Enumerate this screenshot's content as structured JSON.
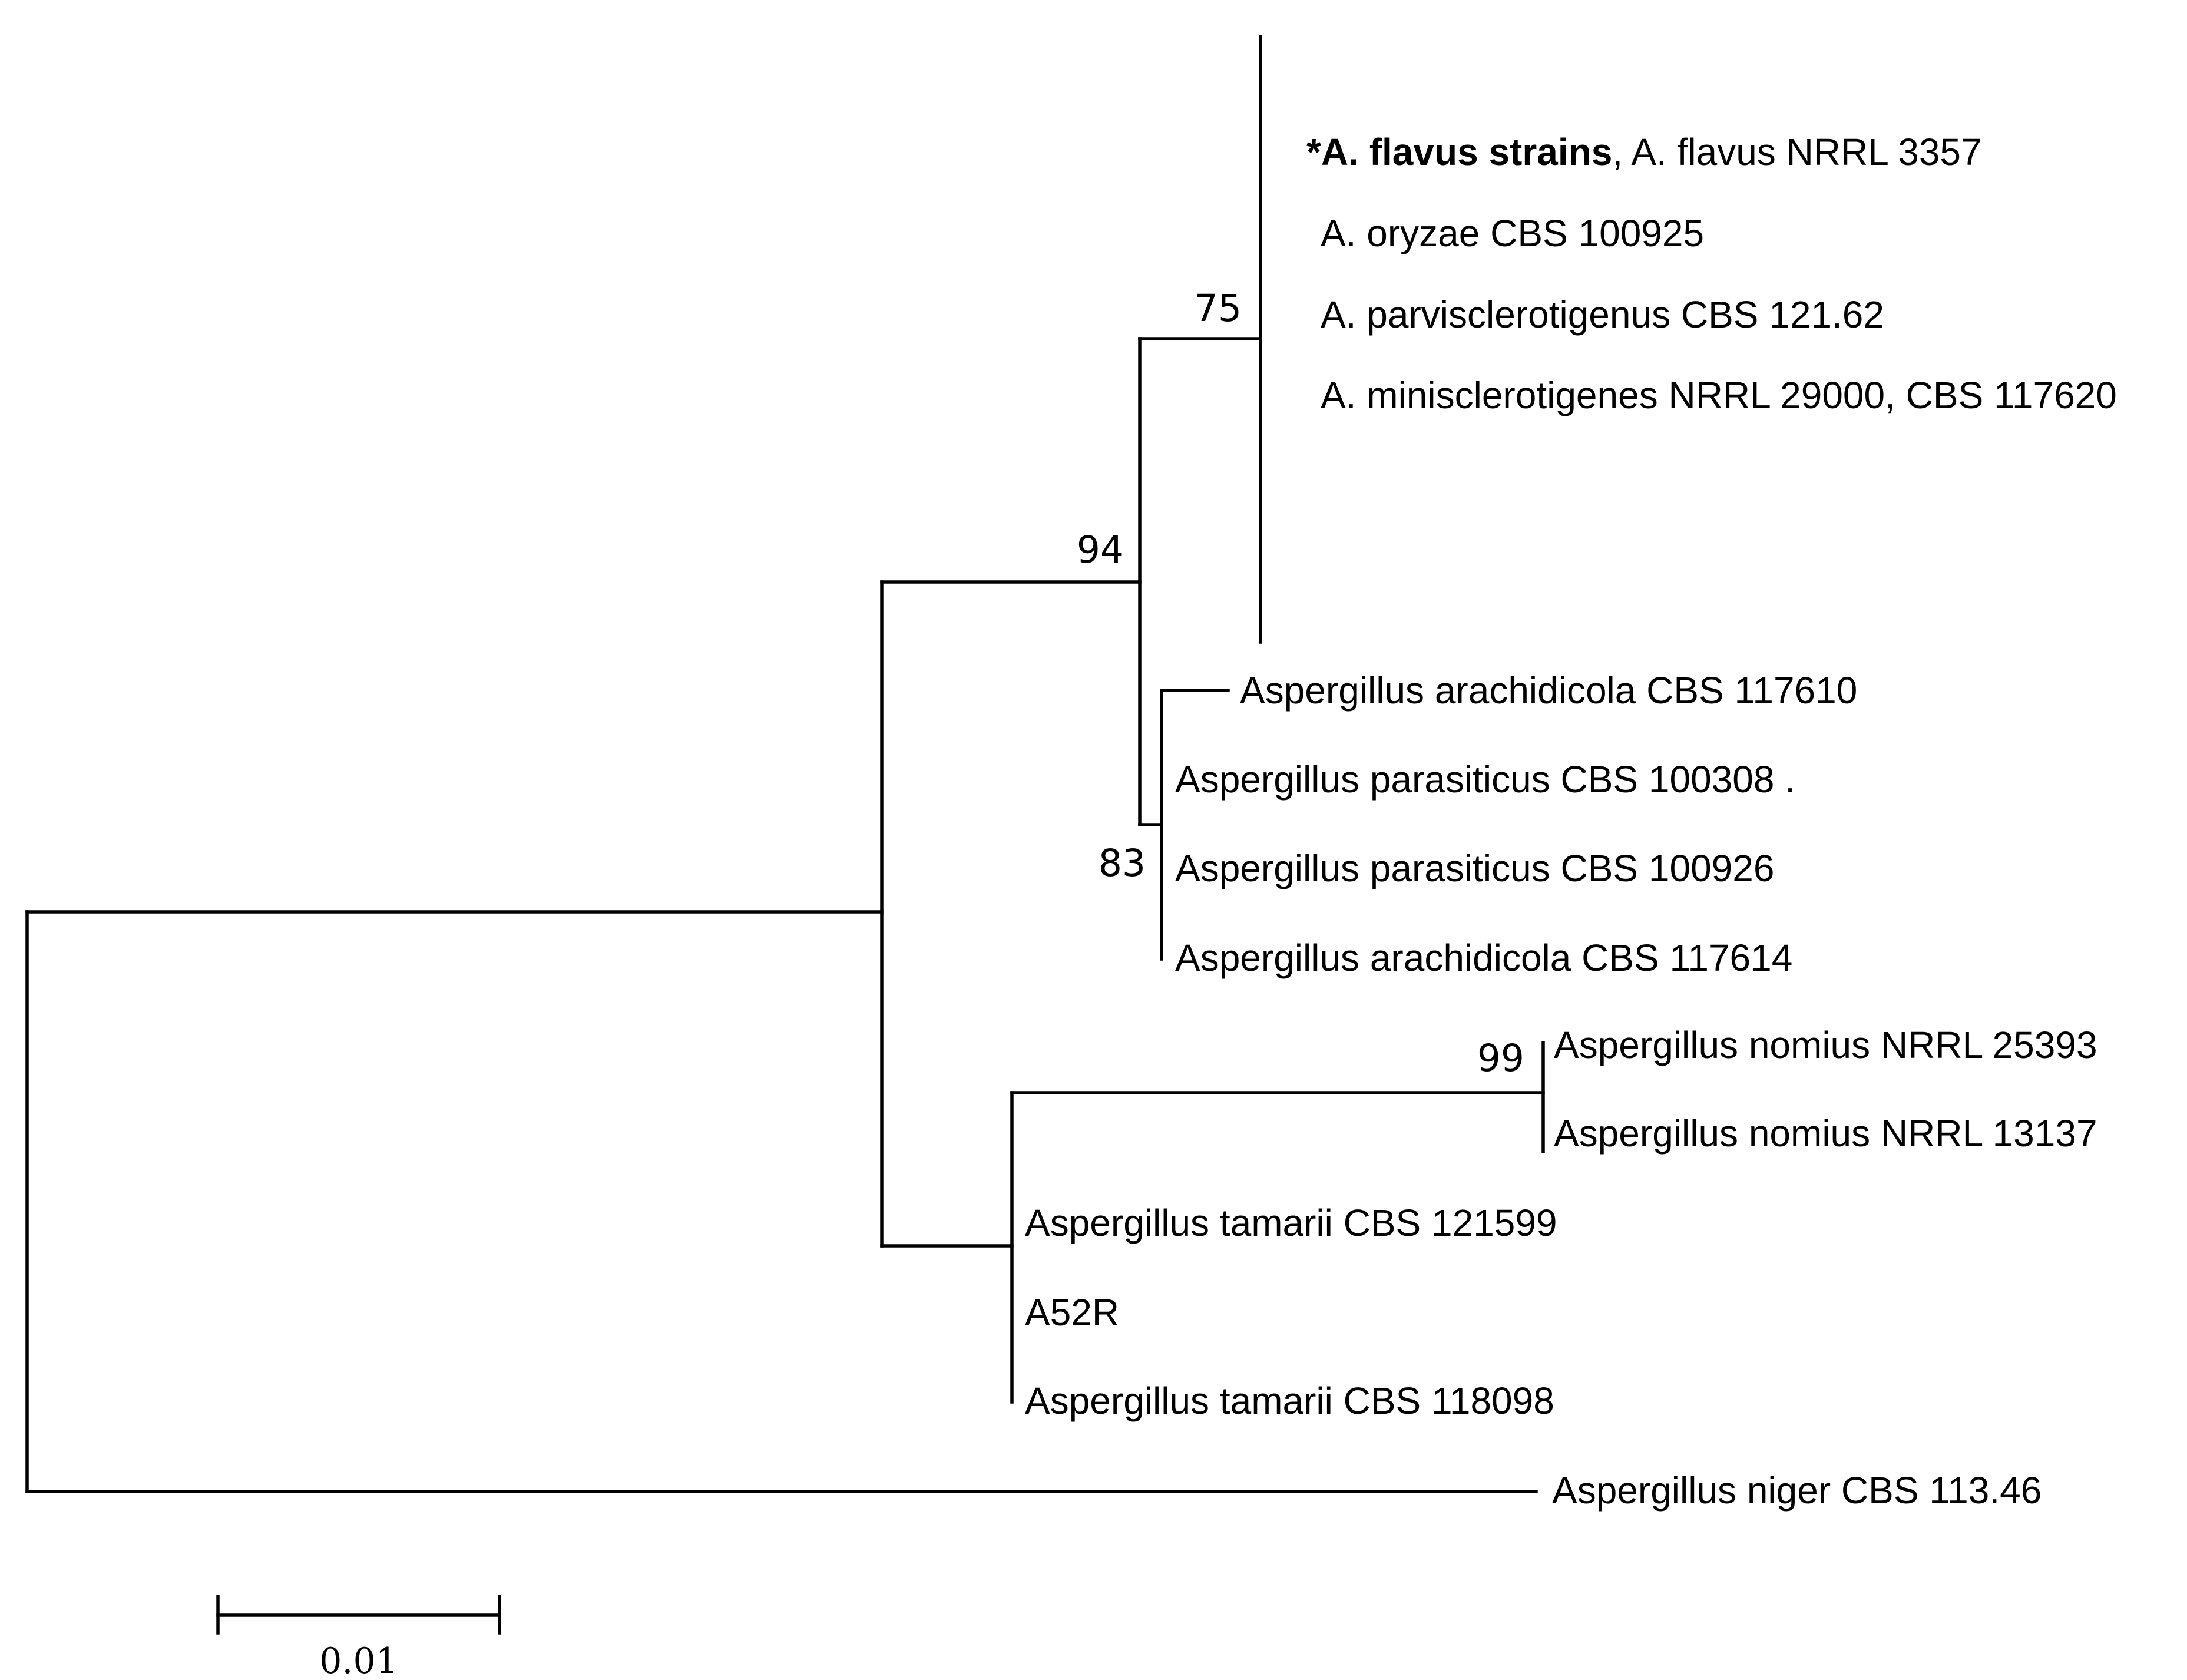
{
  "tree": {
    "taxa": [
      {
        "id": "flavus-group",
        "bold_part": "*A. flavus strains",
        "rest": ", A. flavus NRRL 3357"
      },
      {
        "id": "oryzae",
        "label": "A. oryzae CBS 100925"
      },
      {
        "id": "parvisclerotigenus",
        "label": "A. parvisclerotigenus CBS 121.62"
      },
      {
        "id": "minisclerotigenes",
        "label": "A. minisclerotigenes NRRL 29000, CBS 117620"
      },
      {
        "id": "arachidicola-117610",
        "label": "Aspergillus arachidicola CBS 117610"
      },
      {
        "id": "parasiticus-100308",
        "label": "Aspergillus parasiticus CBS 100308 ."
      },
      {
        "id": "parasiticus-100926",
        "label": "Aspergillus parasiticus CBS 100926"
      },
      {
        "id": "arachidicola-117614",
        "label": "Aspergillus arachidicola CBS 117614"
      },
      {
        "id": "nomius-25393",
        "label": "Aspergillus nomius NRRL 25393"
      },
      {
        "id": "nomius-13137",
        "label": "Aspergillus nomius NRRL 13137"
      },
      {
        "id": "tamarii-121599",
        "label": "Aspergillus tamarii CBS 121599"
      },
      {
        "id": "a52r",
        "label": "A52R"
      },
      {
        "id": "tamarii-118098",
        "label": "Aspergillus tamarii CBS 118098"
      },
      {
        "id": "niger",
        "label": "Aspergillus niger CBS 113.46"
      }
    ],
    "support_values": {
      "flavus_clade": "75",
      "flavus_parasiticus_clade": "94",
      "parasiticus_clade": "83",
      "nomius_clade": "99"
    },
    "scale_bar": {
      "label": "0.01"
    }
  }
}
